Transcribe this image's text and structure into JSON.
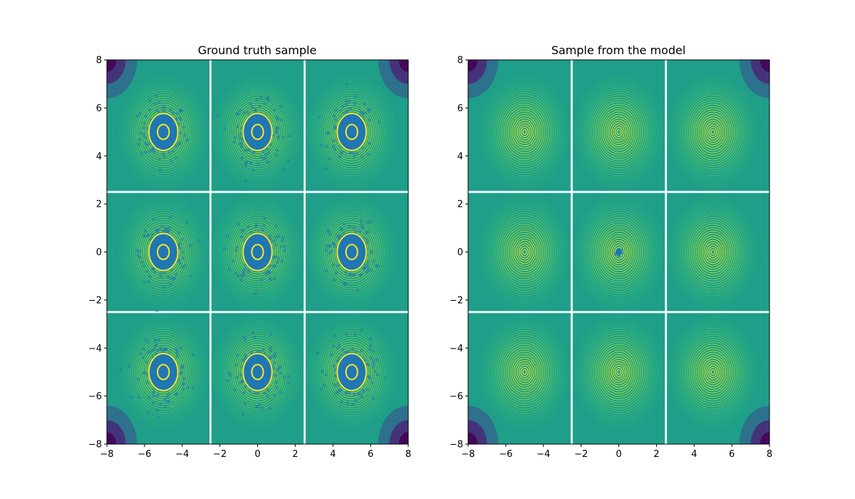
{
  "colors": {
    "viridis": [
      "#440154",
      "#482878",
      "#3e4a89",
      "#31688e",
      "#26828e",
      "#1f9e89",
      "#35b779",
      "#6ece58",
      "#b5de2b",
      "#fde725"
    ],
    "samples": "#1f77b4"
  },
  "chart_data": [
    {
      "type": "contour",
      "title": "Ground truth sample",
      "xlim": [
        -8,
        8
      ],
      "ylim": [
        -8,
        8
      ],
      "xticks": [
        "−8",
        "−6",
        "−4",
        "−2",
        "0",
        "2",
        "4",
        "6",
        "8"
      ],
      "yticks": [
        "−8",
        "−6",
        "−4",
        "−2",
        "0",
        "2",
        "4",
        "6",
        "8"
      ],
      "mode_centers": [
        [
          -5,
          5
        ],
        [
          0,
          5
        ],
        [
          5,
          5
        ],
        [
          -5,
          0
        ],
        [
          0,
          0
        ],
        [
          5,
          0
        ],
        [
          -5,
          -5
        ],
        [
          0,
          -5
        ],
        [
          5,
          -5
        ]
      ],
      "scatter_spread": 1.1,
      "points_per_mode": 160,
      "scatter_overlay": true
    },
    {
      "type": "contour",
      "title": "Sample from the model",
      "xlim": [
        -8,
        8
      ],
      "ylim": [
        -8,
        8
      ],
      "xticks": [
        "−8",
        "−6",
        "−4",
        "−2",
        "0",
        "2",
        "4",
        "6",
        "8"
      ],
      "yticks": [
        "−8",
        "−6",
        "−4",
        "−2",
        "0",
        "2",
        "4",
        "6",
        "8"
      ],
      "mode_centers": [
        [
          -5,
          5
        ],
        [
          0,
          5
        ],
        [
          5,
          5
        ],
        [
          -5,
          0
        ],
        [
          0,
          0
        ],
        [
          5,
          0
        ],
        [
          -5,
          -5
        ],
        [
          0,
          -5
        ],
        [
          5,
          -5
        ]
      ],
      "scatter_spread": 0.06,
      "points_per_mode": 40,
      "scatter_overlay": false,
      "model_sample_center": [
        0,
        0
      ]
    }
  ]
}
